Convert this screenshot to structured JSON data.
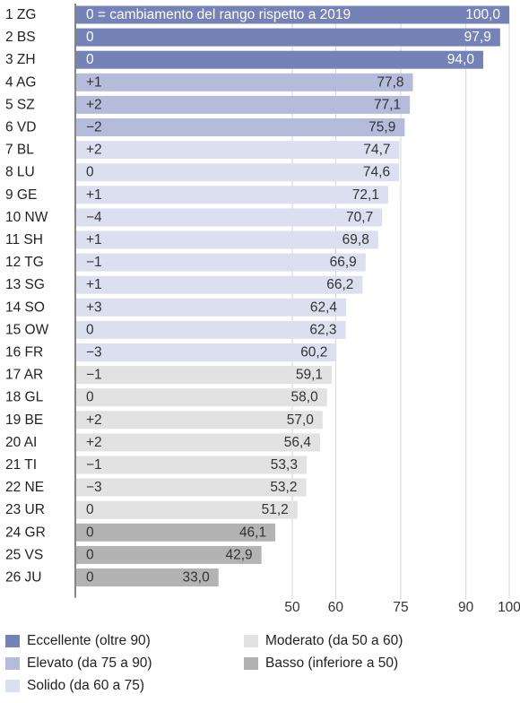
{
  "chart_data": {
    "type": "bar",
    "orientation": "horizontal",
    "annotation": "0 = cambiamento del rango rispetto a 2019",
    "categories": [
      "1 ZG",
      "2 BS",
      "3 ZH",
      "4 AG",
      "5 SZ",
      "6 VD",
      "7 BL",
      "8 LU",
      "9 GE",
      "10 NW",
      "11 SH",
      "12 TG",
      "13 SG",
      "14 SO",
      "15 OW",
      "16 FR",
      "17 AR",
      "18 GL",
      "19 BE",
      "20 AI",
      "21 TI",
      "22 NE",
      "23 UR",
      "24 GR",
      "25 VS",
      "26 JU"
    ],
    "values": [
      100.0,
      97.9,
      94.0,
      77.8,
      77.1,
      75.9,
      74.7,
      74.6,
      72.1,
      70.7,
      69.8,
      66.9,
      66.2,
      62.4,
      62.3,
      60.2,
      59.1,
      58.0,
      57.0,
      56.4,
      53.3,
      53.2,
      51.2,
      46.1,
      42.9,
      33.0
    ],
    "value_labels": [
      "100,0",
      "97,9",
      "94,0",
      "77,8",
      "77,1",
      "75,9",
      "74,7",
      "74,6",
      "72,1",
      "70,7",
      "69,8",
      "66,9",
      "66,2",
      "62,4",
      "62,3",
      "60,2",
      "59,1",
      "58,0",
      "57,0",
      "56,4",
      "53,3",
      "53,2",
      "51,2",
      "46,1",
      "42,9",
      "33,0"
    ],
    "rank_change": [
      "",
      "0",
      "0",
      "+1",
      "+2",
      "−2",
      "+2",
      "0",
      "+1",
      "−4",
      "+1",
      "−1",
      "+1",
      "+3",
      "0",
      "−3",
      "−1",
      "0",
      "+2",
      "+2",
      "−1",
      "−3",
      "0",
      "0",
      "0",
      "0"
    ],
    "xticks": [
      50,
      60,
      75,
      90,
      100
    ],
    "xtick_labels": [
      "50",
      "60",
      "75",
      "90",
      "100"
    ],
    "xlim": [
      0,
      100
    ],
    "classes": [
      {
        "label": "Eccellente (oltre 90)",
        "min": 90,
        "color": "#7582b8"
      },
      {
        "label": "Elevato (da 75 a 90)",
        "min": 75,
        "color": "#b4bbdb"
      },
      {
        "label": "Solido (da 60 a 75)",
        "min": 60,
        "color": "#dcdfef"
      },
      {
        "label": "Moderato (da 50 a 60)",
        "min": 50,
        "color": "#e2e2e2"
      },
      {
        "label": "Basso (inferiore a 50)",
        "min": 0,
        "color": "#b3b3b3"
      }
    ]
  }
}
